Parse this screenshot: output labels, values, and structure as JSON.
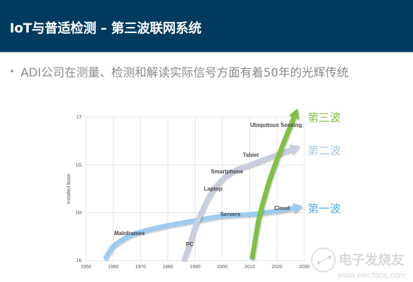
{
  "header": {
    "title": "IoT与普适检测 – 第三波联网系统"
  },
  "bullet": {
    "text": "ADI公司在测量、检测和解读实际信号方面有着50年的光辉传统"
  },
  "watermark": {
    "brand": "电子发烧友",
    "url": "www.elecfans.com"
  },
  "chart_data": {
    "type": "line",
    "title": "",
    "xlabel": "",
    "ylabel": "Installed Base",
    "xlim": [
      1950,
      2030
    ],
    "y_scale": "log",
    "ylim": [
      1000,
      1000000000000
    ],
    "x_ticks": [
      1950,
      1960,
      1970,
      1980,
      1990,
      2000,
      2010,
      2020,
      2030
    ],
    "x_tick_labels": [
      "1950",
      "1960",
      "1970",
      "1980",
      "1990",
      "2000",
      "2010",
      "2020",
      "2030"
    ],
    "y_ticks": [
      1000,
      1000000,
      1000000000,
      1000000000000
    ],
    "y_tick_labels": [
      "1K",
      "1M",
      "1G",
      "1T"
    ],
    "grid": true,
    "series": [
      {
        "name": "第一波",
        "color": "#9dcdf0",
        "label_color": "#4aaee6",
        "points": [
          [
            1957.3,
            1600
          ],
          [
            1958.5,
            3500
          ],
          [
            1960,
            8000
          ],
          [
            1965,
            30000
          ],
          [
            1970,
            63000
          ],
          [
            1980,
            160000
          ],
          [
            1990,
            320000
          ],
          [
            2000,
            630000
          ],
          [
            2010,
            800000
          ],
          [
            2020,
            1300000
          ],
          [
            2028,
            2200000
          ]
        ]
      },
      {
        "name": "第二波",
        "color": "#c9cde0",
        "label_color": "#a8c6e6",
        "points": [
          [
            1986,
            1300
          ],
          [
            1988,
            10000
          ],
          [
            1990,
            126000
          ],
          [
            1995,
            10000000
          ],
          [
            2000,
            130000000
          ],
          [
            2005,
            500000000
          ],
          [
            2010,
            1000000000
          ],
          [
            2020,
            4500000000
          ],
          [
            2027,
            12000000000
          ]
        ]
      },
      {
        "name": "第三波",
        "color": "#7dc242",
        "label_color": "#7dc242",
        "points": [
          [
            2011,
            1600
          ],
          [
            2013,
            200000
          ],
          [
            2014.5,
            2500000
          ],
          [
            2018,
            250000000
          ],
          [
            2022,
            16000000000
          ],
          [
            2027,
            2000000000000
          ]
        ]
      }
    ],
    "annotations": [
      {
        "text": "Mainframes",
        "x": 1960.3,
        "y": 40000
      },
      {
        "text": "PC",
        "x": 1986.6,
        "y": 8000
      },
      {
        "text": "Laptop",
        "x": 1993.2,
        "y": 25000000
      },
      {
        "text": "Smartphone",
        "x": 1995.8,
        "y": 300000000
      },
      {
        "text": "Servers",
        "x": 1999.2,
        "y": 630000
      },
      {
        "text": "Tablet",
        "x": 2007.5,
        "y": 3200000000
      },
      {
        "text": "Cloud",
        "x": 2019,
        "y": 1500000
      },
      {
        "text": "Ubiquitous Sensing",
        "x": 2010.2,
        "y": 250000000000
      }
    ]
  }
}
